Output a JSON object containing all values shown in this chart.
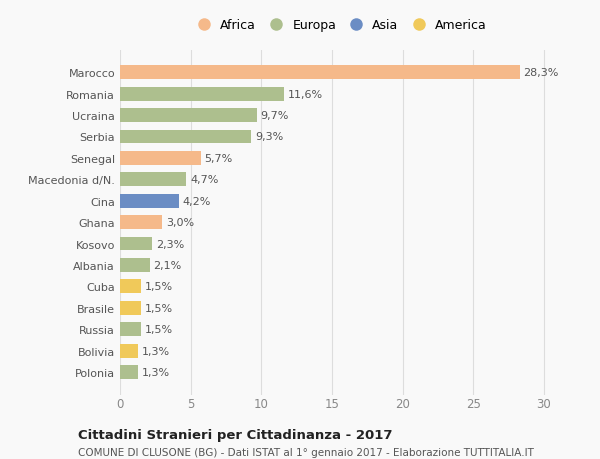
{
  "countries": [
    "Marocco",
    "Romania",
    "Ucraina",
    "Serbia",
    "Senegal",
    "Macedonia d/N.",
    "Cina",
    "Ghana",
    "Kosovo",
    "Albania",
    "Cuba",
    "Brasile",
    "Russia",
    "Bolivia",
    "Polonia"
  ],
  "values": [
    28.3,
    11.6,
    9.7,
    9.3,
    5.7,
    4.7,
    4.2,
    3.0,
    2.3,
    2.1,
    1.5,
    1.5,
    1.5,
    1.3,
    1.3
  ],
  "labels": [
    "28,3%",
    "11,6%",
    "9,7%",
    "9,3%",
    "5,7%",
    "4,7%",
    "4,2%",
    "3,0%",
    "2,3%",
    "2,1%",
    "1,5%",
    "1,5%",
    "1,5%",
    "1,3%",
    "1,3%"
  ],
  "continents": [
    "Africa",
    "Europa",
    "Europa",
    "Europa",
    "Africa",
    "Europa",
    "Asia",
    "Africa",
    "Europa",
    "Europa",
    "America",
    "America",
    "Europa",
    "America",
    "Europa"
  ],
  "colors": {
    "Africa": "#F5B98A",
    "Europa": "#ADBF8E",
    "Asia": "#6B8DC4",
    "America": "#F0C95A"
  },
  "legend_order": [
    "Africa",
    "Europa",
    "Asia",
    "America"
  ],
  "title1": "Cittadini Stranieri per Cittadinanza - 2017",
  "title2": "COMUNE DI CLUSONE (BG) - Dati ISTAT al 1° gennaio 2017 - Elaborazione TUTTITALIA.IT",
  "xlim": [
    0,
    31
  ],
  "xticks": [
    0,
    5,
    10,
    15,
    20,
    25,
    30
  ],
  "background_color": "#f9f9f9",
  "bar_height": 0.65,
  "label_fontsize": 8.0,
  "ytick_fontsize": 8.0,
  "xtick_fontsize": 8.5
}
